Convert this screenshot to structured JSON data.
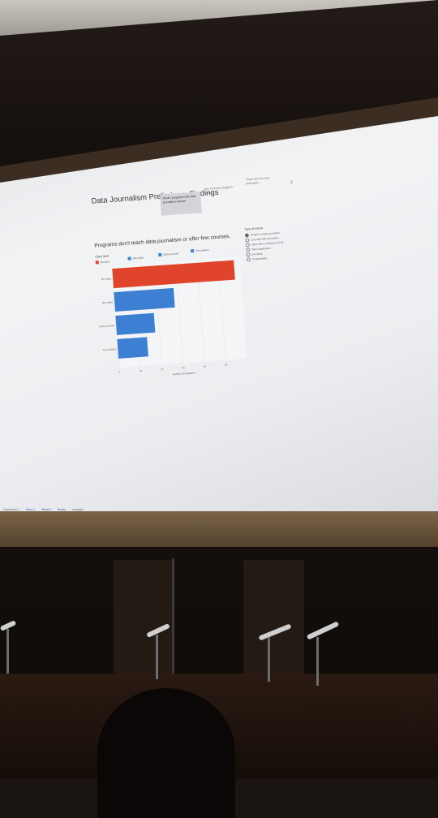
{
  "slide": {
    "title": "Data Journalism Preliminary Findings",
    "story_points": [
      {
        "label": "All MC programs with data journalism classes",
        "active": true
      },
      {
        "label": "Key concepts taught in classes",
        "active": false
      },
      {
        "label": "There are few core journalism",
        "active": false
      }
    ],
    "next_icon": "chevron-right-icon"
  },
  "chart_data": {
    "type": "bar",
    "title": "Programs don't teach data journalism or offer few courses.",
    "legend_title": "Class level",
    "categories": [
      "No Class",
      "One class",
      "Some or more",
      "Two classes"
    ],
    "values": [
      57,
      28,
      18,
      14
    ],
    "colors": [
      "#e0442a",
      "#3d7fd3",
      "#3d7fd3",
      "#3d7fd3"
    ],
    "xlabel": "Number of programs",
    "x_ticks": [
      "0",
      "10",
      "20",
      "30",
      "40",
      "50"
    ],
    "xlim": [
      0,
      60
    ],
    "legend": [
      {
        "label": "No class",
        "color": "#e0442a"
      },
      {
        "label": "One class",
        "color": "#3d7fd3"
      },
      {
        "label": "Some or more",
        "color": "#3d7fd3"
      },
      {
        "label": "Two classes",
        "color": "#3d7fd3"
      }
    ]
  },
  "filter": {
    "title": "Type of course",
    "options": [
      {
        "label": "All types of data journalism",
        "selected": true
      },
      {
        "label": "Less data than journalism",
        "selected": false
      },
      {
        "label": "Class with a component of DJ",
        "selected": false
      },
      {
        "label": "Data visualization",
        "selected": false
      },
      {
        "label": "Emerging",
        "selected": false
      },
      {
        "label": "Programming",
        "selected": false
      }
    ]
  },
  "bottom_tabs": [
    "Dashboard 1",
    "Story 1",
    "Sheet 2",
    "Books",
    "concepts"
  ]
}
